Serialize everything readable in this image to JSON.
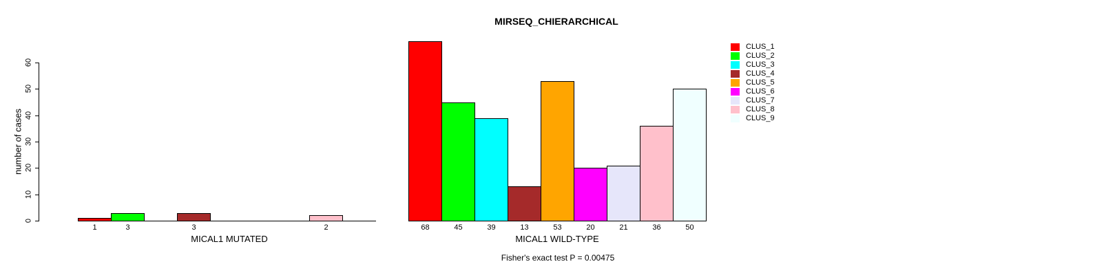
{
  "title": "MIRSEQ_CHIERARCHICAL",
  "chart_data": {
    "type": "bar",
    "title": "MIRSEQ_CHIERARCHICAL",
    "ylabel": "number of cases",
    "ylim": [
      0,
      60
    ],
    "yticks": [
      0,
      10,
      20,
      30,
      40,
      50,
      60
    ],
    "grid": false,
    "legend_position": "right",
    "annotation": "Fisher's exact test P = 0.00475",
    "categories": [
      "CLUS_1",
      "CLUS_2",
      "CLUS_3",
      "CLUS_4",
      "CLUS_5",
      "CLUS_6",
      "CLUS_7",
      "CLUS_8",
      "CLUS_9"
    ],
    "series_colors": [
      "#FF0000",
      "#00FF00",
      "#00FFFF",
      "#A52A2A",
      "#FFA500",
      "#FF00FF",
      "#E6E6FA",
      "#FFC0CB",
      "#F0FFFF"
    ],
    "panels": [
      {
        "xlabel": "MICAL1 MUTATED",
        "values": [
          1,
          3,
          0,
          3,
          0,
          0,
          0,
          2,
          0
        ],
        "bar_labels": [
          "1",
          "3",
          "",
          "3",
          "",
          "",
          "",
          "2",
          ""
        ]
      },
      {
        "xlabel": "MICAL1 WILD-TYPE",
        "values": [
          68,
          45,
          39,
          13,
          53,
          20,
          21,
          36,
          50
        ],
        "bar_labels": [
          "68",
          "45",
          "39",
          "13",
          "53",
          "20",
          "21",
          "36",
          "50"
        ]
      }
    ]
  },
  "legend": {
    "items": [
      {
        "label": "CLUS_1",
        "color": "#FF0000"
      },
      {
        "label": "CLUS_2",
        "color": "#00FF00"
      },
      {
        "label": "CLUS_3",
        "color": "#00FFFF"
      },
      {
        "label": "CLUS_4",
        "color": "#A52A2A"
      },
      {
        "label": "CLUS_5",
        "color": "#FFA500"
      },
      {
        "label": "CLUS_6",
        "color": "#FF00FF"
      },
      {
        "label": "CLUS_7",
        "color": "#E6E6FA"
      },
      {
        "label": "CLUS_8",
        "color": "#FFC0CB"
      },
      {
        "label": "CLUS_9",
        "color": "#F0FFFF"
      }
    ]
  }
}
